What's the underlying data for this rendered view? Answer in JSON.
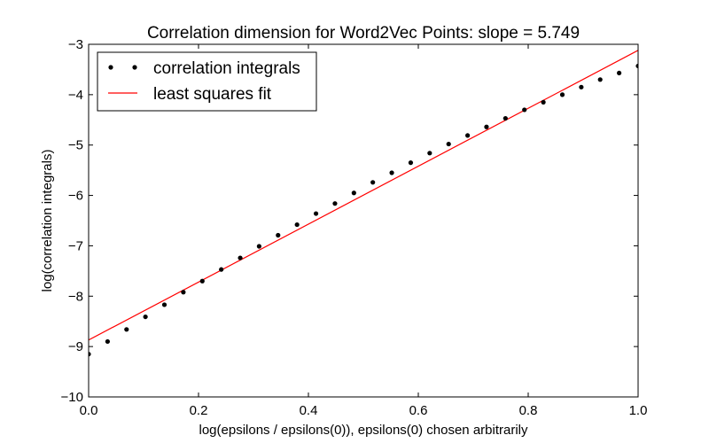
{
  "chart_data": {
    "type": "scatter",
    "title": "Correlation dimension for Word2Vec Points: slope = 5.749",
    "xlabel": "log(epsilons / epsilons(0)), epsilons(0) chosen arbitrarily",
    "ylabel": "log(correlation integrals)",
    "xlim": [
      0.0,
      1.0
    ],
    "ylim": [
      -10,
      -3
    ],
    "xticks": [
      "0.0",
      "0.2",
      "0.4",
      "0.6",
      "0.8",
      "1.0"
    ],
    "yticks": [
      "−3",
      "−4",
      "−5",
      "−6",
      "−7",
      "−8",
      "−9",
      "−10"
    ],
    "grid": false,
    "legend_position": "top-left",
    "series": [
      {
        "name": "correlation integrals",
        "kind": "points",
        "color": "#000000",
        "x": [
          0.0,
          0.0345,
          0.069,
          0.1034,
          0.1379,
          0.1724,
          0.2069,
          0.2414,
          0.2759,
          0.3103,
          0.3448,
          0.3793,
          0.4138,
          0.4483,
          0.4828,
          0.5172,
          0.5517,
          0.5862,
          0.6207,
          0.6552,
          0.6897,
          0.7241,
          0.7586,
          0.7931,
          0.8276,
          0.8621,
          0.8966,
          0.931,
          0.9655,
          1.0
        ],
        "y": [
          -9.15,
          -8.9,
          -8.66,
          -8.41,
          -8.17,
          -7.92,
          -7.7,
          -7.47,
          -7.24,
          -7.01,
          -6.79,
          -6.58,
          -6.36,
          -6.16,
          -5.95,
          -5.74,
          -5.55,
          -5.35,
          -5.16,
          -4.98,
          -4.81,
          -4.64,
          -4.47,
          -4.3,
          -4.15,
          -4.0,
          -3.85,
          -3.7,
          -3.57,
          -3.43
        ]
      },
      {
        "name": "least squares fit",
        "kind": "line",
        "color": "#ff0000",
        "x": [
          0.0,
          1.0
        ],
        "y": [
          -8.87,
          -3.12
        ]
      }
    ]
  }
}
